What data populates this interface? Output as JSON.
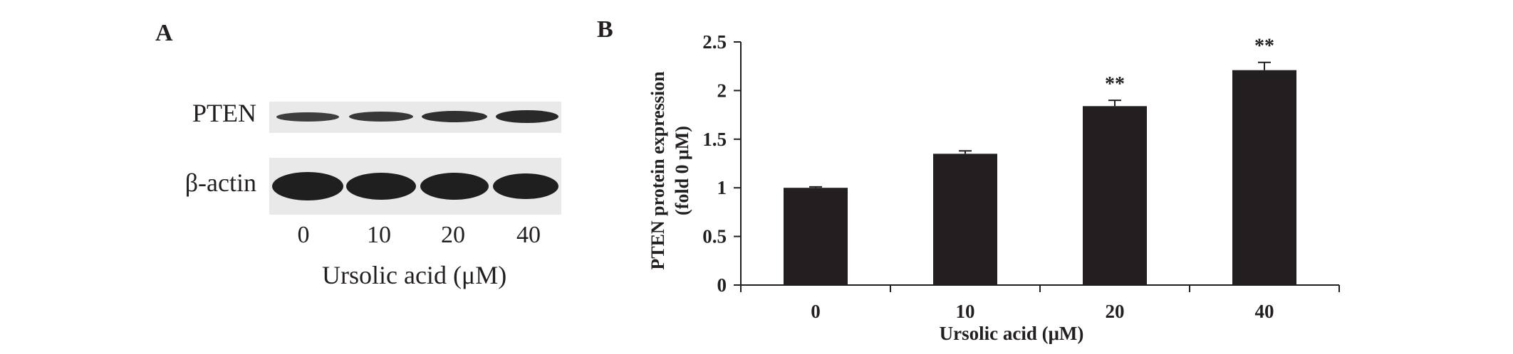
{
  "panel_a": {
    "label": "A",
    "rows": [
      "PTEN",
      "β-actin"
    ],
    "lanes": [
      "0",
      "10",
      "20",
      "40"
    ],
    "xlabel": "Ursolic acid (μM)"
  },
  "chart_data": {
    "type": "bar",
    "panel_label": "B",
    "categories": [
      "0",
      "10",
      "20",
      "40"
    ],
    "values": [
      1.0,
      1.35,
      1.84,
      2.21
    ],
    "errors": [
      0.01,
      0.03,
      0.06,
      0.08
    ],
    "annotations": [
      "",
      "",
      "**",
      "**"
    ],
    "xlabel": "Ursolic acid (μM)",
    "ylabel": [
      "PTEN protein expression",
      "(fold 0 μM)"
    ],
    "ylim": [
      0,
      2.5
    ],
    "yticks": [
      "0",
      "0.5",
      "1",
      "1.5",
      "2",
      "2.5"
    ],
    "bar_color": "#231f20",
    "grid": false,
    "legend": "none"
  }
}
